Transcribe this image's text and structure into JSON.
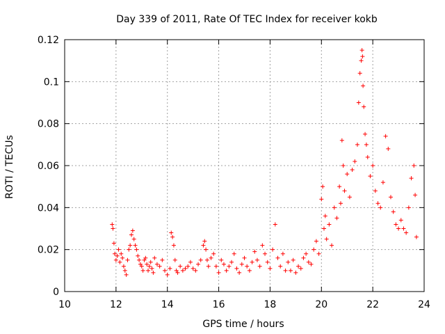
{
  "chart_data": {
    "type": "scatter",
    "title": "Day 339 of 2011, Rate Of TEC Index for receiver kokb",
    "xlabel": "GPS time / hours",
    "ylabel": "ROTI / TECUs",
    "xlim": [
      10,
      24
    ],
    "ylim": [
      0,
      0.12
    ],
    "xticks": [
      10,
      12,
      14,
      16,
      18,
      20,
      22,
      24
    ],
    "yticks": [
      0,
      0.02,
      0.04,
      0.06,
      0.08,
      0.1,
      0.12
    ],
    "xtick_labels": [
      "10",
      "12",
      "14",
      "16",
      "18",
      "20",
      "22",
      "24"
    ],
    "ytick_labels": [
      "0",
      "0.02",
      "0.04",
      "0.06",
      "0.08",
      "0.1",
      "0.12"
    ],
    "grid": true,
    "marker": "+",
    "color": "#ff0000",
    "series": [
      {
        "name": "ROTI",
        "x": [
          11.85,
          11.88,
          11.92,
          11.95,
          12.0,
          12.05,
          12.1,
          12.15,
          12.2,
          12.25,
          12.3,
          12.35,
          12.4,
          12.45,
          12.5,
          12.55,
          12.6,
          12.65,
          12.7,
          12.75,
          12.8,
          12.85,
          12.9,
          12.95,
          13.0,
          13.05,
          13.1,
          13.15,
          13.2,
          13.25,
          13.3,
          13.35,
          13.4,
          13.45,
          13.5,
          13.6,
          13.7,
          13.8,
          13.9,
          14.0,
          14.1,
          14.15,
          14.2,
          14.25,
          14.3,
          14.35,
          14.4,
          14.5,
          14.6,
          14.7,
          14.8,
          14.9,
          15.0,
          15.1,
          15.2,
          15.3,
          15.4,
          15.45,
          15.5,
          15.55,
          15.6,
          15.7,
          15.8,
          15.9,
          16.0,
          16.1,
          16.2,
          16.3,
          16.4,
          16.5,
          16.6,
          16.7,
          16.8,
          16.9,
          17.0,
          17.1,
          17.2,
          17.3,
          17.4,
          17.5,
          17.6,
          17.7,
          17.8,
          17.9,
          18.0,
          18.1,
          18.2,
          18.3,
          18.4,
          18.5,
          18.6,
          18.7,
          18.8,
          18.9,
          19.0,
          19.1,
          19.2,
          19.3,
          19.4,
          19.5,
          19.6,
          19.7,
          19.8,
          19.9,
          20.0,
          20.05,
          20.1,
          20.15,
          20.2,
          20.3,
          20.4,
          20.5,
          20.6,
          20.7,
          20.75,
          20.8,
          20.85,
          20.9,
          21.0,
          21.1,
          21.2,
          21.3,
          21.4,
          21.45,
          21.5,
          21.55,
          21.58,
          21.6,
          21.62,
          21.65,
          21.7,
          21.75,
          21.8,
          21.9,
          22.0,
          22.1,
          22.2,
          22.3,
          22.4,
          22.5,
          22.6,
          22.7,
          22.8,
          22.9,
          23.0,
          23.1,
          23.2,
          23.3,
          23.4,
          23.5,
          23.6,
          23.65,
          23.7
        ],
        "y": [
          0.032,
          0.03,
          0.023,
          0.018,
          0.015,
          0.017,
          0.02,
          0.014,
          0.018,
          0.016,
          0.012,
          0.01,
          0.008,
          0.015,
          0.02,
          0.022,
          0.027,
          0.029,
          0.025,
          0.022,
          0.02,
          0.017,
          0.015,
          0.013,
          0.012,
          0.01,
          0.015,
          0.016,
          0.013,
          0.01,
          0.012,
          0.014,
          0.011,
          0.009,
          0.016,
          0.013,
          0.012,
          0.015,
          0.01,
          0.008,
          0.011,
          0.028,
          0.026,
          0.022,
          0.015,
          0.01,
          0.009,
          0.012,
          0.01,
          0.011,
          0.012,
          0.014,
          0.011,
          0.01,
          0.013,
          0.015,
          0.022,
          0.024,
          0.02,
          0.015,
          0.012,
          0.016,
          0.018,
          0.012,
          0.009,
          0.015,
          0.013,
          0.01,
          0.012,
          0.014,
          0.018,
          0.011,
          0.009,
          0.013,
          0.016,
          0.012,
          0.01,
          0.014,
          0.019,
          0.015,
          0.012,
          0.022,
          0.018,
          0.014,
          0.011,
          0.02,
          0.032,
          0.016,
          0.012,
          0.018,
          0.01,
          0.014,
          0.01,
          0.015,
          0.009,
          0.012,
          0.011,
          0.016,
          0.018,
          0.014,
          0.013,
          0.02,
          0.024,
          0.018,
          0.044,
          0.05,
          0.03,
          0.036,
          0.025,
          0.032,
          0.022,
          0.04,
          0.035,
          0.05,
          0.042,
          0.072,
          0.06,
          0.048,
          0.056,
          0.045,
          0.058,
          0.062,
          0.07,
          0.09,
          0.104,
          0.11,
          0.115,
          0.112,
          0.098,
          0.088,
          0.075,
          0.07,
          0.064,
          0.055,
          0.06,
          0.048,
          0.042,
          0.04,
          0.052,
          0.074,
          0.068,
          0.045,
          0.038,
          0.032,
          0.03,
          0.034,
          0.03,
          0.028,
          0.04,
          0.054,
          0.06,
          0.046,
          0.026
        ]
      }
    ]
  }
}
